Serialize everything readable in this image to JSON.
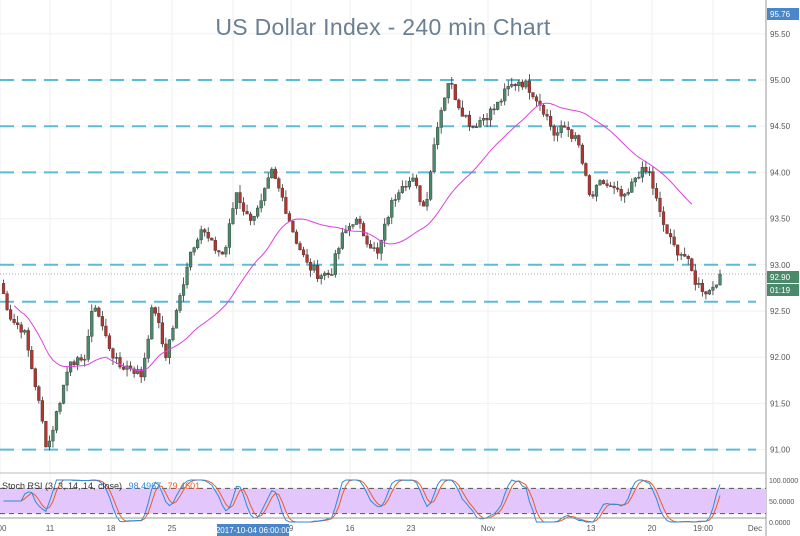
{
  "chart_title": "US Dollar Index - 240 min Chart",
  "price_axis": {
    "ticks": [
      "95.50",
      "95.00",
      "94.50",
      "94.00",
      "93.50",
      "93.00",
      "92.50",
      "92.00",
      "91.50",
      "91.00"
    ],
    "high_label": "95.76",
    "last_price_label": "92.90",
    "countdown_label": "01:19"
  },
  "time_axis": {
    "labels": [
      "00",
      "11",
      "18",
      "25",
      "9",
      "16",
      "23",
      "Nov",
      "13",
      "20",
      "19:00",
      "Dec"
    ],
    "crosshair_label": "2017-10-04 06:00:00"
  },
  "stoch_rsi": {
    "label": "Stoch RSI (3, 3, 14, 14, close)",
    "k_value": "98.4967",
    "d_value": "79.4601",
    "ticks": [
      "100.0000",
      "50.0000",
      "0.0000"
    ],
    "upper_band": 80,
    "lower_band": 20
  },
  "colors": {
    "up_candle": "#4a8a6a",
    "down_candle": "#b5342e",
    "moving_average": "#e040e0",
    "support_resistance": "#5bbcd6",
    "stoch_k": "#2e8bd8",
    "stoch_d": "#f05a28",
    "stoch_band": "#e3c6fb",
    "high_badge": "#4a86c8",
    "last_badge": "#4a8a6a"
  },
  "chart_data": {
    "type": "candlestick",
    "y_range": [
      90.8,
      95.85
    ],
    "horizontal_levels": [
      95.0,
      94.5,
      94.0,
      93.0,
      92.6,
      91.0
    ],
    "current_price": 92.9,
    "close_path": [
      92.8,
      92.4,
      92.3,
      91.7,
      91.0,
      91.5,
      92.0,
      91.9,
      92.6,
      92.2,
      91.9,
      91.9,
      91.8,
      92.6,
      92.0,
      92.5,
      93.1,
      93.4,
      93.2,
      93.1,
      93.8,
      93.5,
      93.6,
      94.0,
      93.7,
      93.3,
      93.0,
      92.9,
      92.9,
      93.3,
      93.5,
      93.3,
      93.1,
      93.6,
      93.9,
      93.9,
      93.6,
      94.5,
      95.0,
      94.7,
      94.5,
      94.6,
      94.7,
      94.9,
      95.0,
      94.9,
      94.7,
      94.4,
      94.5,
      94.3,
      93.7,
      93.9,
      93.8,
      93.7,
      94.0,
      94.0,
      93.5,
      93.2,
      93.1,
      92.8,
      92.7,
      92.9
    ]
  }
}
